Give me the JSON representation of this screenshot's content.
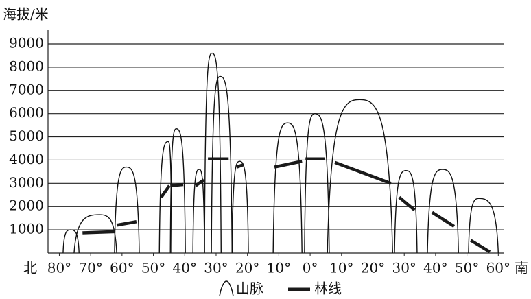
{
  "chart_data": {
    "type": "mountain-profile",
    "y_axis_label": "海拔/米",
    "x_start_label": "北",
    "x_end_label": "南",
    "xlim": [
      -83.6,
      61.9
    ],
    "ylim": [
      0,
      9000
    ],
    "xticks": [
      {
        "value": -80,
        "label": "80°"
      },
      {
        "value": -70,
        "label": "70°"
      },
      {
        "value": -60,
        "label": "60°"
      },
      {
        "value": -50,
        "label": "50°"
      },
      {
        "value": -40,
        "label": "40°"
      },
      {
        "value": -30,
        "label": "30°"
      },
      {
        "value": -20,
        "label": "20°"
      },
      {
        "value": -10,
        "label": "10°"
      },
      {
        "value": 0,
        "label": "0°"
      },
      {
        "value": 10,
        "label": "10°"
      },
      {
        "value": 20,
        "label": "20°"
      },
      {
        "value": 30,
        "label": "30°"
      },
      {
        "value": 40,
        "label": "40°"
      },
      {
        "value": 50,
        "label": "50°"
      },
      {
        "value": 60,
        "label": "60°"
      }
    ],
    "yticks": [
      1000,
      2000,
      3000,
      4000,
      5000,
      6000,
      7000,
      8000,
      9000
    ],
    "grid": true,
    "mountains": {
      "name": "山脉",
      "color": "#111111",
      "items": [
        {
          "base": [
            -78.8,
            -73.7
          ],
          "peak": [
            -76.4,
            1000
          ]
        },
        {
          "base": [
            -75.3,
            -61.7
          ],
          "peak": [
            -67.2,
            1650
          ]
        },
        {
          "base": [
            -62.4,
            -54.5
          ],
          "peak": [
            -58.6,
            3700
          ]
        },
        {
          "base": [
            -48.1,
            -44.2
          ],
          "peak": [
            -45.3,
            4800
          ]
        },
        {
          "base": [
            -44.6,
            -39.8
          ],
          "peak": [
            -42.7,
            5350
          ]
        },
        {
          "base": [
            -37.4,
            -33.7
          ],
          "peak": [
            -35.4,
            3600
          ]
        },
        {
          "base": [
            -33.7,
            -28.4
          ],
          "peak": [
            -31.3,
            8600
          ]
        },
        {
          "base": [
            -31.5,
            -24.9
          ],
          "peak": [
            -28.7,
            7600
          ]
        },
        {
          "base": [
            -24.9,
            -19.7
          ],
          "peak": [
            -22.5,
            3950
          ]
        },
        {
          "base": [
            -11.8,
            -2.6
          ],
          "peak": [
            -7.2,
            5600
          ]
        },
        {
          "base": [
            -1.8,
            6.1
          ],
          "peak": [
            1.5,
            6000
          ]
        },
        {
          "base": [
            5.5,
            26.3
          ],
          "peak": [
            15.8,
            6600
          ]
        },
        {
          "base": [
            26.9,
            34.1
          ],
          "peak": [
            30.6,
            3550
          ]
        },
        {
          "base": [
            37.4,
            47.3
          ],
          "peak": [
            42.2,
            3600
          ]
        },
        {
          "base": [
            50.5,
            60
          ],
          "peak": [
            53.8,
            2350
          ]
        }
      ]
    },
    "tree_line": {
      "name": "林线",
      "color": "#1a1a1a",
      "segments": [
        {
          "x": [
            -72.6,
            -62.4
          ],
          "values": [
            870,
            920
          ]
        },
        {
          "x": [
            -61.7,
            -55.4
          ],
          "values": [
            1200,
            1350
          ]
        },
        {
          "x": [
            -47.5,
            -44.9
          ],
          "values": [
            2400,
            2900
          ]
        },
        {
          "x": [
            -44.6,
            -40.5
          ],
          "values": [
            2900,
            2950
          ]
        },
        {
          "x": [
            -36.5,
            -33.9
          ],
          "values": [
            2900,
            3150
          ]
        },
        {
          "x": [
            -32.6,
            -26.0
          ],
          "values": [
            4050,
            4050
          ]
        },
        {
          "x": [
            -23.4,
            -21.4
          ],
          "values": [
            3700,
            3800
          ]
        },
        {
          "x": [
            -11.4,
            -2.6
          ],
          "values": [
            3700,
            3950
          ]
        },
        {
          "x": [
            -1.5,
            4.8
          ],
          "values": [
            4050,
            4050
          ]
        },
        {
          "x": [
            7.9,
            25.8
          ],
          "values": [
            3900,
            3000
          ]
        },
        {
          "x": [
            28.4,
            33.3
          ],
          "values": [
            2400,
            1850
          ]
        },
        {
          "x": [
            38.9,
            45.9
          ],
          "values": [
            1750,
            1150
          ]
        },
        {
          "x": [
            51.2,
            57.3
          ],
          "values": [
            550,
            50
          ]
        }
      ]
    }
  }
}
